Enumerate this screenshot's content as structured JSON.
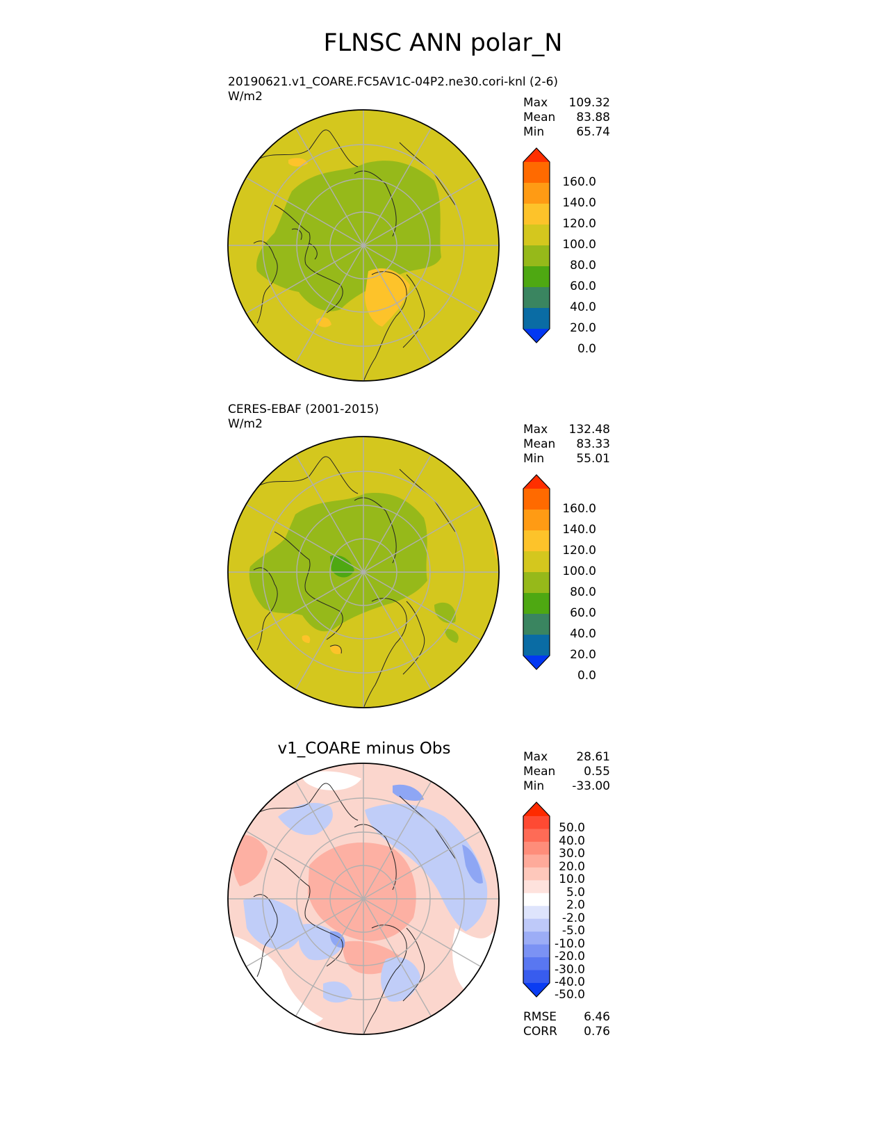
{
  "title": "FLNSC ANN polar_N",
  "panels": [
    {
      "id": "test",
      "title_line1": "20190621.v1_COARE.FC5AV1C-04P2.ne30.cori-knl (2-6)",
      "title_line2": "W/m2",
      "stats": [
        {
          "label": "Max",
          "value": "109.32"
        },
        {
          "label": "Mean",
          "value": "83.88"
        },
        {
          "label": "Min",
          "value": "65.74"
        }
      ],
      "colorbar": {
        "labels": [
          "160.0",
          "140.0",
          "120.0",
          "100.0",
          "80.0",
          "60.0",
          "40.0",
          "20.0",
          "0.0"
        ],
        "colors": [
          "#ff2f00",
          "#ff6a00",
          "#ff9b14",
          "#fdc32a",
          "#d4c71e",
          "#96b91a",
          "#4ea812",
          "#3a8560",
          "#0a6ca4",
          "#0238f2"
        ]
      }
    },
    {
      "id": "ref",
      "title_line1": "CERES-EBAF (2001-2015)",
      "title_line2": "W/m2",
      "stats": [
        {
          "label": "Max",
          "value": "132.48"
        },
        {
          "label": "Mean",
          "value": "83.33"
        },
        {
          "label": "Min",
          "value": "55.01"
        }
      ],
      "colorbar": {
        "labels": [
          "160.0",
          "140.0",
          "120.0",
          "100.0",
          "80.0",
          "60.0",
          "40.0",
          "20.0",
          "0.0"
        ],
        "colors": [
          "#ff2f00",
          "#ff6a00",
          "#ff9b14",
          "#fdc32a",
          "#d4c71e",
          "#96b91a",
          "#4ea812",
          "#3a8560",
          "#0a6ca4",
          "#0238f2"
        ]
      }
    },
    {
      "id": "diff",
      "title_line1": "v1_COARE minus Obs",
      "stats": [
        {
          "label": "Max",
          "value": "28.61"
        },
        {
          "label": "Mean",
          "value": "0.55"
        },
        {
          "label": "Min",
          "value": "-33.00"
        }
      ],
      "metrics": [
        {
          "label": "RMSE",
          "value": "6.46"
        },
        {
          "label": "CORR",
          "value": "0.76"
        }
      ],
      "colorbar": {
        "labels": [
          "50.0",
          "40.0",
          "30.0",
          "20.0",
          "10.0",
          "5.0",
          "2.0",
          "-2.0",
          "-5.0",
          "-10.0",
          "-20.0",
          "-30.0",
          "-40.0",
          "-50.0"
        ],
        "colors": [
          "#fe2a00",
          "#fe4a33",
          "#fe6b56",
          "#fe8d7a",
          "#feaa9a",
          "#fec8bb",
          "#fee2dd",
          "#ffffff",
          "#dee4fc",
          "#bec9f9",
          "#9cadf6",
          "#7b92f4",
          "#5977f1",
          "#385cee",
          "#0a3cf2"
        ]
      }
    }
  ],
  "colors": {
    "test_base": "#d4c71e",
    "test_green": "#96b91a",
    "test_orange": "#fdc32a",
    "ref_base": "#d4c71e",
    "ref_green": "#96b91a",
    "ref_dark": "#4ea812",
    "ref_orange": "#fdc32a",
    "diff_base": "#fbd6cd",
    "diff_red": "#fdb0a3",
    "diff_blue": "#c0cdf8",
    "diff_blue_dark": "#8ea6f4",
    "grid": "#b0b0b0",
    "coast": "#222222"
  }
}
